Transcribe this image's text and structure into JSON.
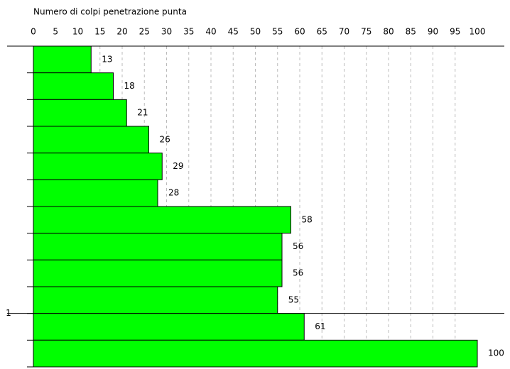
{
  "chart_data": {
    "type": "barh",
    "x_label": "Numero di colpi penetrazione punta",
    "categories": [
      null,
      null,
      null,
      null,
      null,
      null,
      null,
      null,
      null,
      null,
      null,
      null
    ],
    "values": [
      13,
      18,
      21,
      26,
      29,
      28,
      58,
      56,
      56,
      55,
      61,
      100
    ],
    "color": "#00ff00",
    "xlim": [
      0,
      100
    ],
    "xticks": [
      0,
      5,
      10,
      15,
      20,
      25,
      30,
      35,
      40,
      45,
      50,
      55,
      60,
      65,
      70,
      75,
      80,
      85,
      90,
      95,
      100
    ],
    "ylim": [
      0,
      1.2
    ],
    "yticks": [
      1
    ],
    "grid": true
  }
}
